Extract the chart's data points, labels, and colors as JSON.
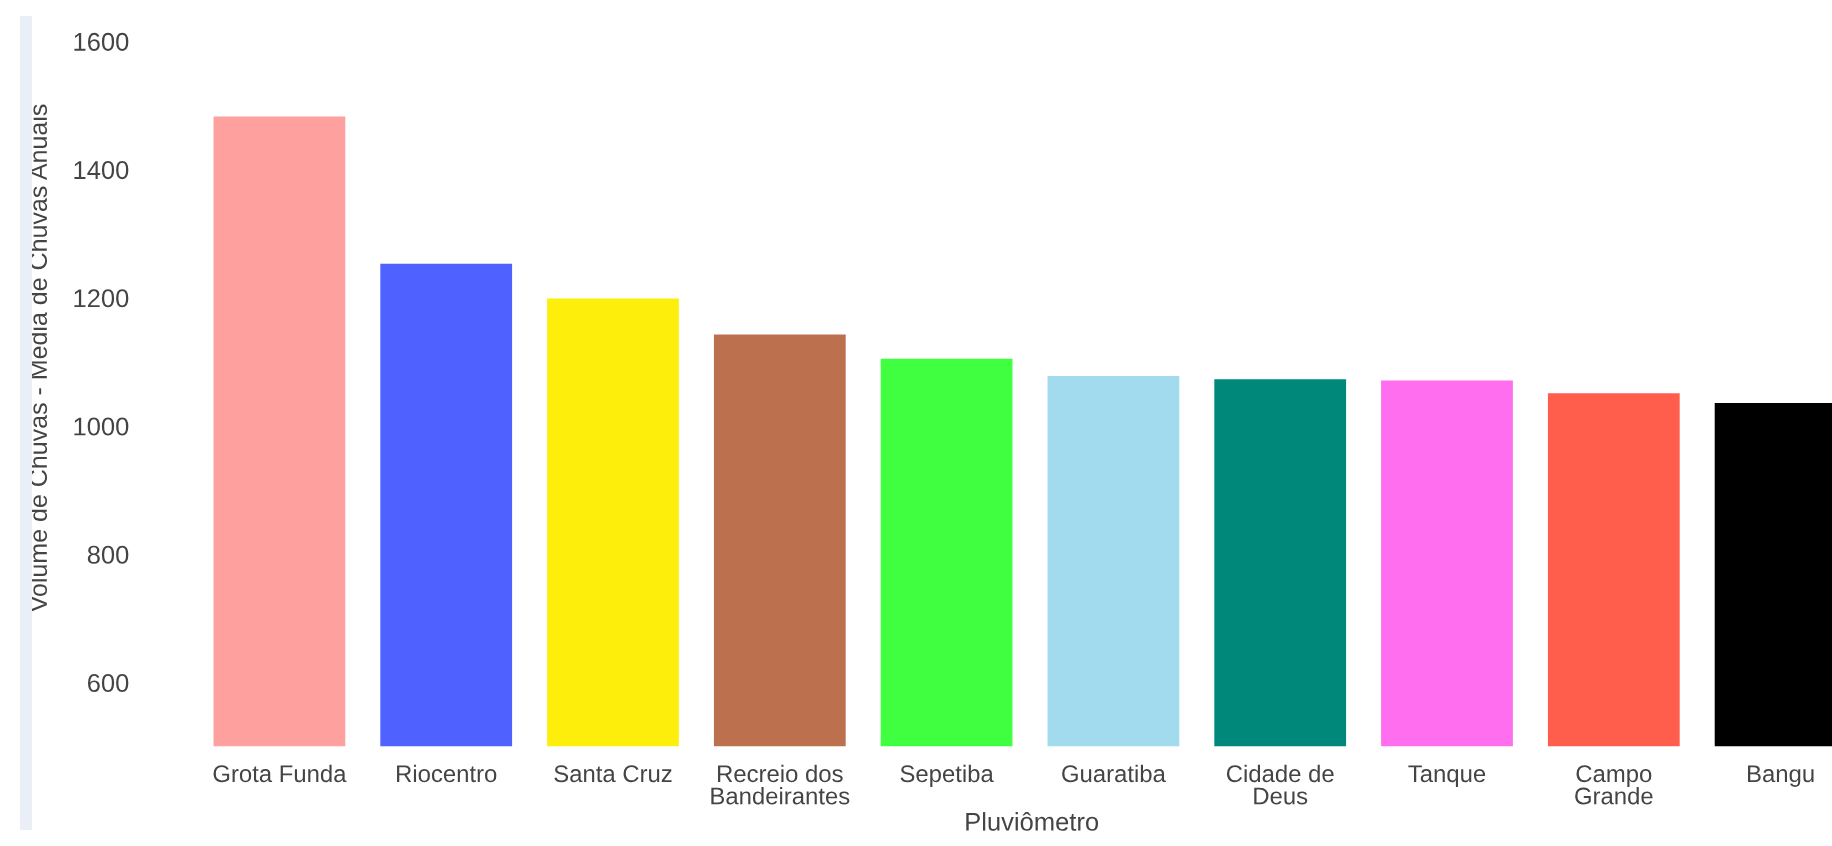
{
  "chart_data": {
    "type": "bar",
    "xlabel": "Pluviômetro",
    "ylabel": "Volume de Chuvas - Média de Chuvas Anuais",
    "categories": [
      "Grota Funda",
      "Riocentro",
      "Santa Cruz",
      "Recreio dos Bandeirantes",
      "Sepetiba",
      "Guaratiba",
      "Cidade de Deus",
      "Tanque",
      "Campo Grande",
      "Bangu"
    ],
    "values": [
      1483,
      1253,
      1199,
      1143,
      1105,
      1078,
      1073,
      1071,
      1051,
      1036
    ],
    "colors": [
      "#fea19e",
      "#4f61ff",
      "#fdee0b",
      "#bd704d",
      "#40ff40",
      "#a2dbed",
      "#00897b",
      "#ff6eef",
      "#ff5e4c",
      "#000000"
    ],
    "ylim": [
      500,
      1600
    ],
    "yticks": [
      600,
      800,
      1000,
      1200,
      1400,
      1600
    ],
    "grid": false
  }
}
